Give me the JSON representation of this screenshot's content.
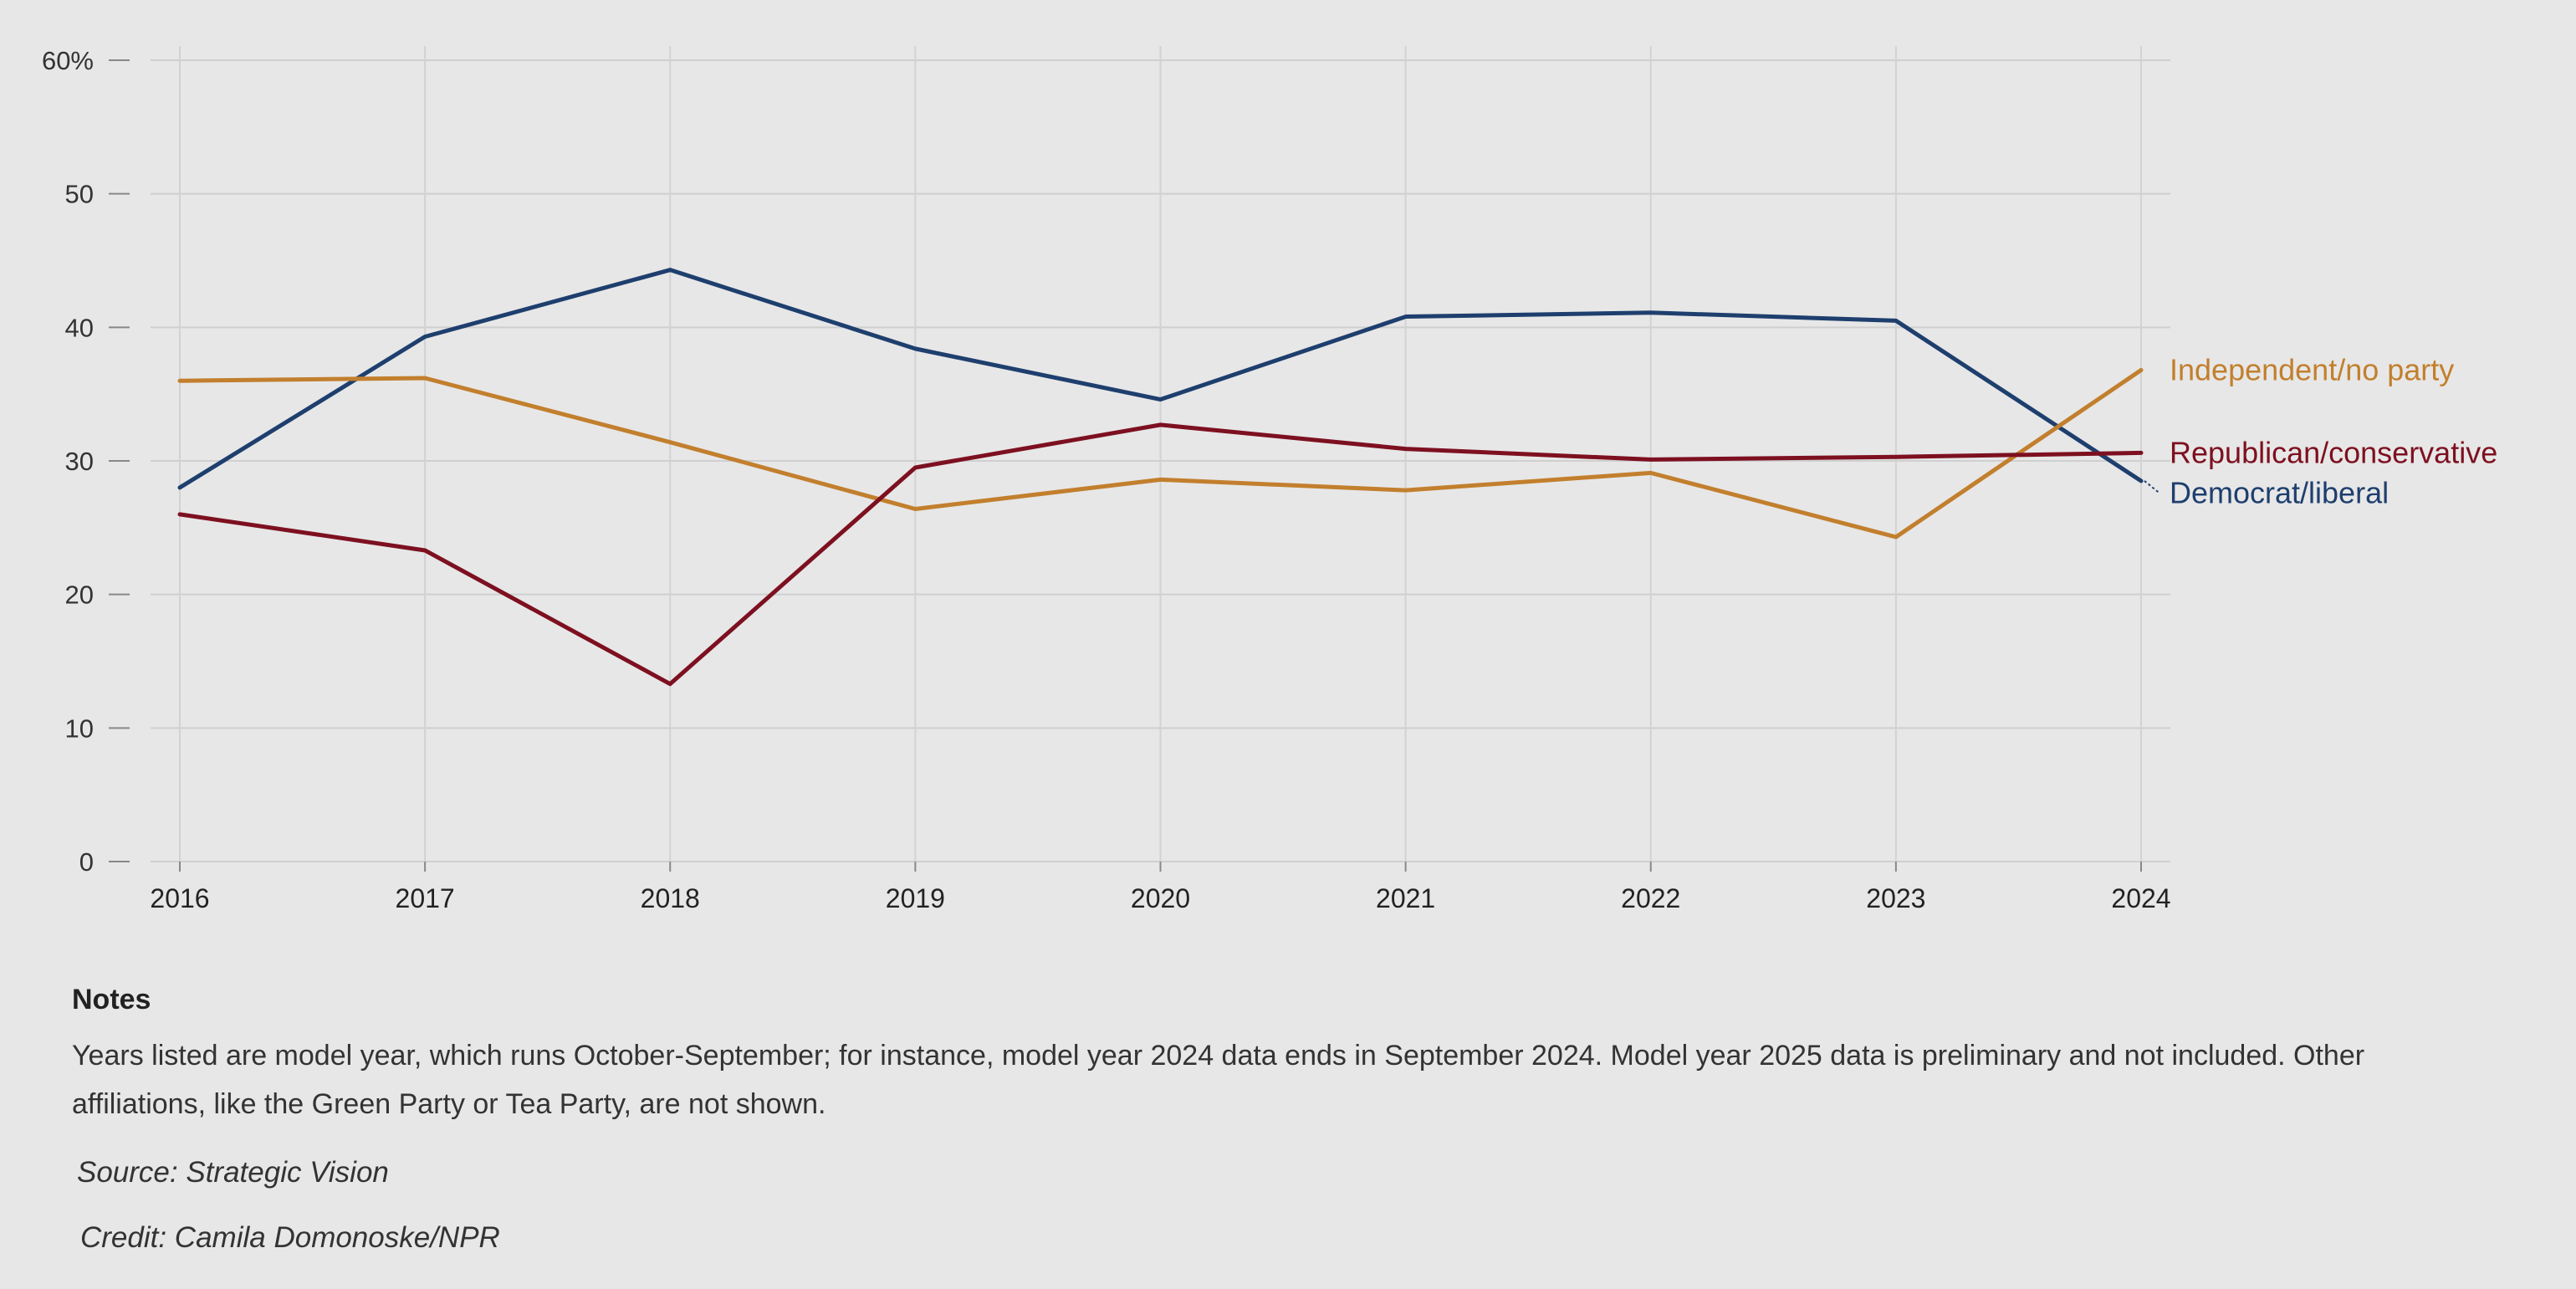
{
  "chart_data": {
    "type": "line",
    "x": [
      "2016",
      "2017",
      "2018",
      "2019",
      "2020",
      "2021",
      "2022",
      "2023",
      "2024"
    ],
    "series": [
      {
        "name": "Democrat/liberal",
        "color": "#1e3f6e",
        "values": [
          28,
          39.3,
          44.3,
          38.4,
          34.6,
          40.8,
          41.1,
          40.5,
          28.5
        ]
      },
      {
        "name": "Independent/no party",
        "color": "#c27f2d",
        "values": [
          36,
          36.2,
          31.4,
          26.4,
          28.6,
          27.8,
          29.1,
          24.3,
          36.8
        ]
      },
      {
        "name": "Republican/conservative",
        "color": "#7d1020",
        "values": [
          26,
          23.3,
          13.3,
          29.5,
          32.7,
          30.9,
          30.1,
          30.3,
          30.6
        ]
      }
    ],
    "ylim": [
      0,
      60
    ],
    "yticks": [
      0,
      10,
      20,
      30,
      40,
      50,
      60
    ],
    "ytick_labels": [
      "0",
      "10",
      "20",
      "30",
      "40",
      "50",
      "60%"
    ],
    "xlabel": "",
    "ylabel": "",
    "grid": true,
    "legend": "direct labels at line ends (right)"
  },
  "notes": {
    "heading": "Notes",
    "text": "Years listed are model year, which runs October-September; for instance, model year 2024 data ends in September 2024. Model year 2025 data is preliminary and not included. Other affiliations, like the Green Party or Tea Party, are not shown."
  },
  "source": "Source: Strategic Vision",
  "credit": "Credit: Camila Domonoske/NPR"
}
